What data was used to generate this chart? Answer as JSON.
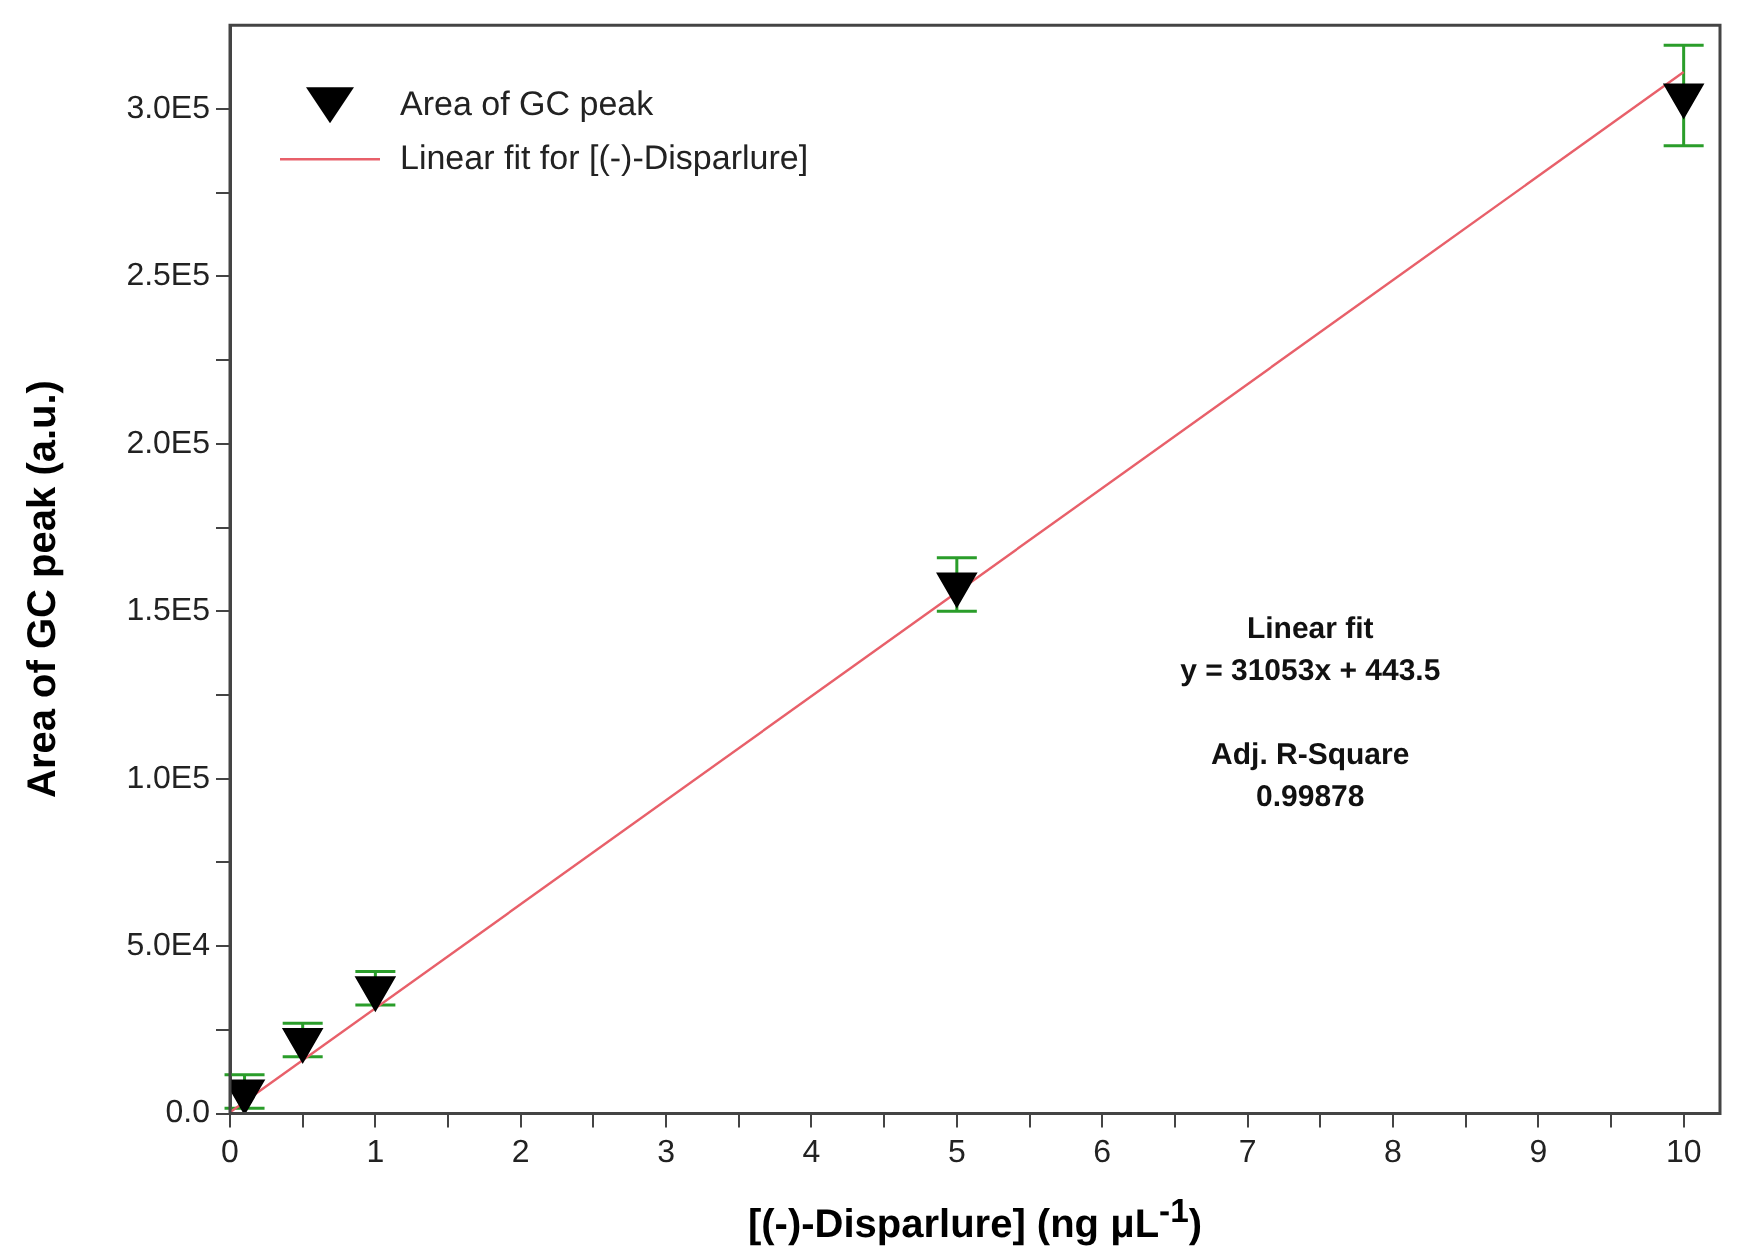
{
  "chart_data": {
    "type": "scatter",
    "xlabel": "[(-)-Disparlure] (ng μL$^{-1}$)",
    "ylabel": "Area of GC peak (a.u.)",
    "xlim": [
      0,
      10.25
    ],
    "ylim": [
      0,
      325000
    ],
    "xticks": [
      0,
      {
        "value": 0.5,
        "label": null
      },
      1,
      {
        "value": 1.5,
        "label": null
      },
      2,
      {
        "value": 2.5,
        "label": null
      },
      3,
      {
        "value": 3.5,
        "label": null
      },
      4,
      {
        "value": 4.5,
        "label": null
      },
      5,
      {
        "value": 5.5,
        "label": null
      },
      6,
      {
        "value": 6.5,
        "label": null
      },
      7,
      {
        "value": 7.5,
        "label": null
      },
      8,
      {
        "value": 8.5,
        "label": null
      },
      9,
      {
        "value": 9.5,
        "label": null
      },
      10
    ],
    "yticks": [
      {
        "value": 0,
        "label": "0.0"
      },
      {
        "value": 25000,
        "label": null
      },
      {
        "value": 50000,
        "label": "5.0E4"
      },
      {
        "value": 75000,
        "label": null
      },
      {
        "value": 100000,
        "label": "1.0E5"
      },
      {
        "value": 125000,
        "label": null
      },
      {
        "value": 150000,
        "label": "1.5E5"
      },
      {
        "value": 175000,
        "label": null
      },
      {
        "value": 200000,
        "label": "2.0E5"
      },
      {
        "value": 225000,
        "label": null
      },
      {
        "value": 250000,
        "label": "2.5E5"
      },
      {
        "value": 275000,
        "label": null
      },
      {
        "value": 300000,
        "label": "3.0E5"
      }
    ],
    "grid": false,
    "legend": "top left",
    "marker": "triangle",
    "series": [
      {
        "name": "Area of GC peak",
        "color": "#000000",
        "x": [
          0.1,
          0.5,
          1,
          5,
          10
        ],
        "values": [
          6600,
          22000,
          37400,
          158000,
          304000
        ],
        "errors": [
          5000,
          5000,
          5000,
          8000,
          15000
        ]
      },
      {
        "name": "Linear fit for [(-)-Disparlure]",
        "type": "line",
        "color": "#e8606a",
        "x": [
          0,
          10
        ],
        "values": [
          400,
          311000
        ],
        "marker": "none"
      }
    ],
    "annotations": [
      "Linear fit",
      "y = 31053x + 443.5",
      "Adj. R-Square",
      "0.99878"
    ]
  }
}
